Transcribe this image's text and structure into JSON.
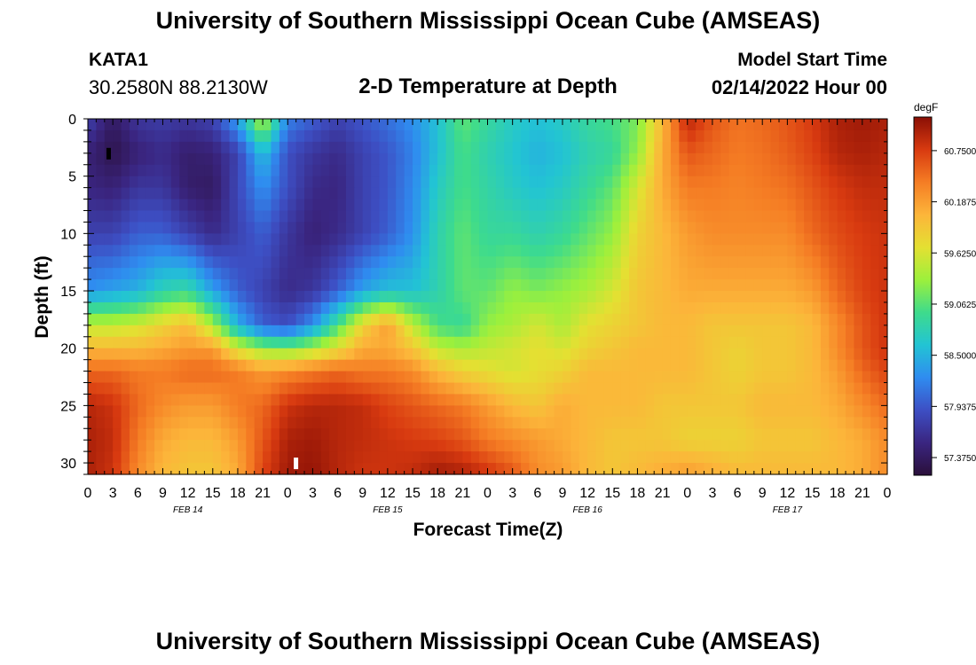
{
  "header": {
    "title": "University of Southern Mississippi Ocean Cube (AMSEAS)",
    "station_id": "KATA1",
    "station_coords": "30.2580N  88.2130W",
    "plot_title": "2-D Temperature at Depth",
    "model_start_label": "Model Start Time",
    "model_start_value": "02/14/2022 Hour 00"
  },
  "footer": {
    "title": "University of Southern Mississippi Ocean Cube (AMSEAS)"
  },
  "chart_data": {
    "type": "heatmap",
    "title": "2-D Temperature at Depth",
    "xlabel": "Forecast Time(Z)",
    "ylabel": "Depth (ft)",
    "x_range_hours": [
      0,
      96
    ],
    "y_range_ft": [
      0,
      31
    ],
    "x_tick_labels": [
      "0",
      "3",
      "6",
      "9",
      "12",
      "15",
      "18",
      "21",
      "0",
      "3",
      "6",
      "9",
      "12",
      "15",
      "18",
      "21",
      "0",
      "3",
      "6",
      "9",
      "12",
      "15",
      "18",
      "21",
      "0",
      "3",
      "6",
      "9",
      "12",
      "15",
      "18",
      "21",
      "0"
    ],
    "y_ticks": [
      0,
      5,
      10,
      15,
      20,
      25,
      30
    ],
    "y_tick_labels": [
      "0",
      "5",
      "10",
      "15",
      "20",
      "25",
      "30"
    ],
    "day_labels": [
      {
        "label": "FEB 14",
        "hour": 12
      },
      {
        "label": "FEB 15",
        "hour": 36
      },
      {
        "label": "FEB 16",
        "hour": 60
      },
      {
        "label": "FEB 17",
        "hour": 84
      }
    ],
    "colorbar": {
      "unit": "degF",
      "min": 57.2,
      "max": 61.1,
      "tick_values": [
        60.75,
        60.1875,
        59.625,
        59.0625,
        58.5,
        57.9375,
        57.375
      ],
      "tick_labels": [
        "60.7500",
        "60.1875",
        "59.6250",
        "59.0625",
        "58.5000",
        "57.9375",
        "57.3750"
      ],
      "colors": [
        "#2a0f3a",
        "#3a2580",
        "#3d4fc4",
        "#2f8cf0",
        "#22c4d4",
        "#3edb8c",
        "#9cf03c",
        "#e4e032",
        "#fcb53a",
        "#f57d24",
        "#d83a10",
        "#8a0f05"
      ]
    },
    "depths_ft": [
      0,
      3,
      6,
      10,
      15,
      18,
      20,
      22,
      25,
      28,
      31
    ],
    "times_h": [
      0,
      3,
      6,
      9,
      12,
      15,
      18,
      21,
      24,
      27,
      30,
      33,
      36,
      39,
      42,
      45,
      48,
      51,
      54,
      57,
      60,
      63,
      66,
      69,
      72,
      75,
      78,
      81,
      84,
      87,
      90,
      93,
      96
    ],
    "temperature_degF": [
      [
        57.8,
        57.4,
        57.7,
        57.75,
        57.7,
        57.8,
        58.4,
        59.5,
        58.2,
        58.0,
        57.8,
        57.95,
        58.1,
        58.3,
        58.6,
        59.1,
        58.9,
        58.7,
        58.6,
        58.7,
        58.9,
        59.0,
        59.2,
        60.0,
        60.9,
        60.6,
        60.45,
        60.5,
        60.6,
        60.75,
        60.95,
        61.0,
        60.95
      ],
      [
        57.5,
        57.3,
        57.5,
        57.6,
        57.45,
        57.5,
        57.8,
        58.6,
        57.9,
        57.7,
        57.6,
        57.8,
        57.95,
        58.2,
        58.6,
        59.0,
        58.8,
        58.65,
        58.5,
        58.6,
        58.8,
        58.9,
        59.3,
        60.1,
        60.6,
        60.5,
        60.4,
        60.45,
        60.55,
        60.7,
        60.9,
        60.95,
        60.9
      ],
      [
        57.55,
        57.5,
        57.7,
        57.7,
        57.45,
        57.4,
        57.85,
        58.3,
        57.9,
        57.6,
        57.55,
        57.8,
        57.95,
        58.25,
        58.7,
        59.0,
        58.85,
        58.7,
        58.6,
        58.7,
        58.9,
        59.1,
        59.6,
        60.1,
        60.4,
        60.4,
        60.35,
        60.4,
        60.45,
        60.6,
        60.75,
        60.85,
        60.85
      ],
      [
        57.8,
        57.8,
        58.0,
        58.0,
        57.8,
        57.6,
        57.8,
        58.0,
        57.7,
        57.5,
        57.6,
        57.8,
        58.0,
        58.3,
        58.8,
        59.1,
        58.9,
        58.9,
        58.8,
        58.9,
        59.1,
        59.3,
        59.8,
        60.0,
        60.2,
        60.3,
        60.3,
        60.3,
        60.3,
        60.5,
        60.65,
        60.75,
        60.8
      ],
      [
        58.3,
        58.4,
        58.5,
        58.8,
        58.9,
        58.4,
        58.0,
        57.8,
        57.6,
        57.7,
        58.0,
        58.4,
        58.6,
        58.6,
        58.8,
        59.1,
        59.1,
        59.3,
        59.2,
        59.3,
        59.4,
        59.6,
        59.9,
        60.0,
        60.1,
        60.1,
        60.1,
        60.1,
        60.1,
        60.2,
        60.5,
        60.7,
        60.8
      ],
      [
        59.5,
        59.5,
        59.6,
        59.8,
        60.0,
        59.4,
        58.5,
        58.0,
        57.9,
        58.3,
        59.0,
        59.8,
        60.2,
        59.5,
        59.0,
        58.9,
        59.3,
        59.4,
        59.6,
        59.4,
        59.7,
        59.8,
        59.9,
        60.0,
        60.0,
        59.9,
        59.9,
        59.9,
        59.9,
        60.0,
        60.3,
        60.6,
        60.8
      ],
      [
        60.0,
        60.0,
        60.0,
        60.1,
        60.2,
        60.2,
        59.6,
        59.3,
        59.2,
        59.4,
        59.7,
        60.1,
        60.1,
        59.9,
        59.5,
        59.4,
        59.5,
        59.6,
        59.7,
        59.6,
        59.8,
        59.9,
        60.0,
        60.0,
        60.0,
        59.9,
        59.8,
        59.9,
        59.9,
        60.0,
        60.3,
        60.6,
        60.8
      ],
      [
        60.5,
        60.5,
        60.4,
        60.4,
        60.5,
        60.5,
        60.4,
        60.2,
        60.3,
        60.4,
        60.5,
        60.4,
        60.4,
        60.3,
        60.0,
        59.8,
        59.7,
        59.6,
        59.7,
        59.8,
        60.0,
        60.0,
        60.0,
        60.0,
        60.0,
        59.9,
        59.8,
        59.9,
        59.9,
        60.0,
        60.2,
        60.5,
        60.7
      ],
      [
        60.9,
        60.8,
        60.5,
        60.3,
        60.2,
        60.2,
        60.4,
        60.5,
        60.8,
        60.9,
        60.9,
        60.85,
        60.7,
        60.6,
        60.5,
        60.4,
        60.2,
        60.0,
        59.9,
        60.1,
        60.0,
        60.0,
        60.0,
        59.9,
        59.9,
        59.9,
        59.9,
        60.0,
        60.0,
        60.0,
        60.1,
        60.3,
        60.5
      ],
      [
        60.95,
        60.85,
        60.4,
        60.1,
        60.0,
        60.0,
        60.2,
        60.6,
        60.95,
        61.0,
        60.9,
        60.85,
        60.8,
        60.75,
        60.7,
        60.6,
        60.4,
        60.3,
        60.2,
        60.1,
        60.0,
        59.9,
        59.9,
        59.9,
        59.8,
        59.8,
        59.8,
        59.9,
        59.9,
        59.9,
        60.0,
        60.1,
        60.3
      ],
      [
        60.95,
        60.8,
        60.3,
        60.0,
        59.9,
        59.9,
        60.1,
        60.7,
        61.0,
        61.05,
        60.9,
        60.8,
        60.8,
        60.85,
        61.0,
        60.95,
        60.8,
        60.6,
        60.3,
        60.2,
        60.0,
        59.9,
        60.0,
        60.1,
        60.2,
        60.1,
        60.0,
        60.0,
        60.0,
        60.0,
        60.0,
        60.1,
        60.3
      ]
    ],
    "markers": [
      {
        "name": "surface-marker",
        "hour": 2.5,
        "depth_ft": 3,
        "color": "#000000"
      },
      {
        "name": "bottom-marker",
        "hour": 25,
        "depth_ft": 30,
        "color": "#ffffff"
      }
    ]
  }
}
